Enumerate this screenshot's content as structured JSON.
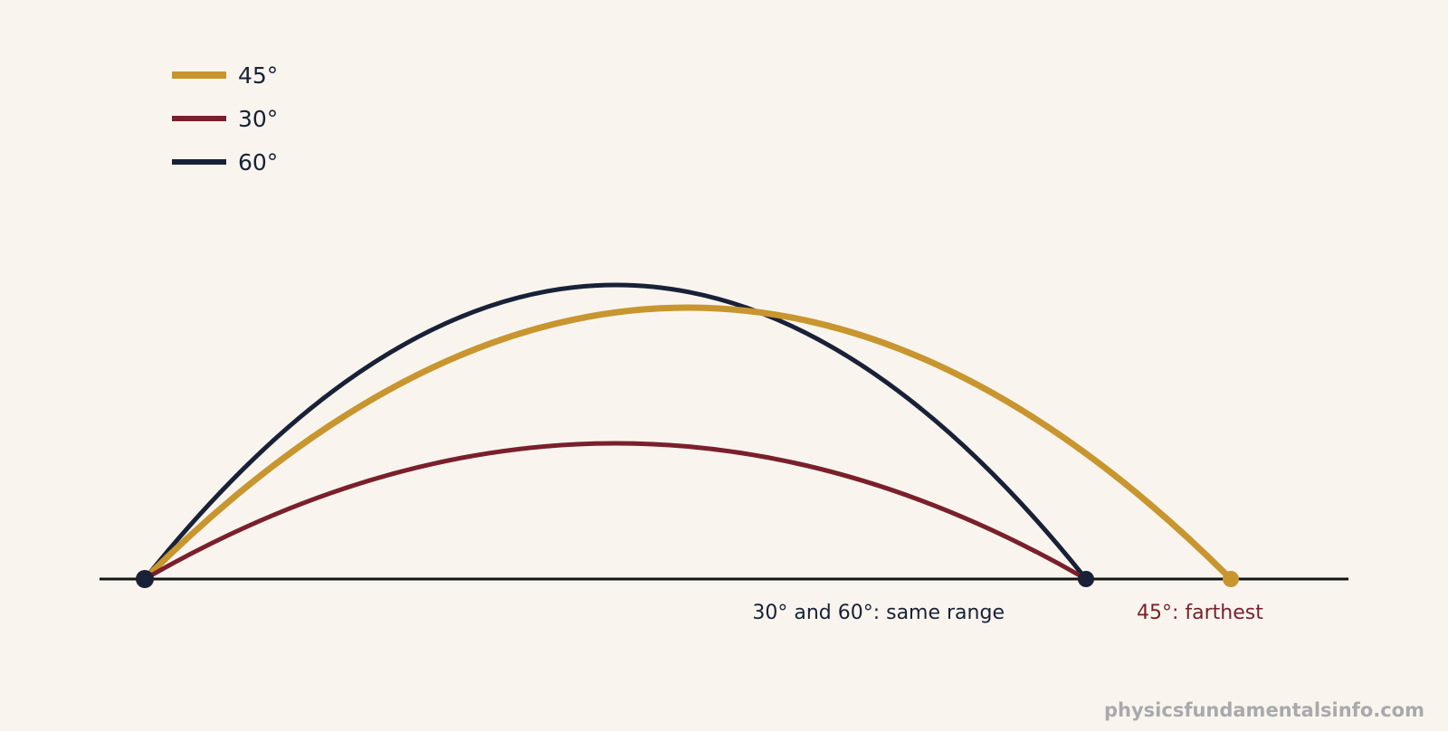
{
  "colors": {
    "background": "#f9f5ee",
    "ground": "#141414",
    "gold": "#c8952f",
    "crimson": "#7a1f2b",
    "navy": "#182138",
    "watermark": "#a9a9ad"
  },
  "legend": [
    {
      "label": "45°",
      "color": "#c8952f"
    },
    {
      "label": "30°",
      "color": "#7a1f2b"
    },
    {
      "label": "60°",
      "color": "#182138"
    }
  ],
  "trajectories": [
    {
      "angle": 45,
      "color": "#c8952f"
    },
    {
      "angle": 30,
      "color": "#7a1f2b"
    },
    {
      "angle": 60,
      "color": "#182138"
    }
  ],
  "annotations": {
    "same_range": "30° and 60°: same range",
    "farthest": "45°: farthest"
  },
  "watermark": "physicsfundamentalsinfo.com"
}
